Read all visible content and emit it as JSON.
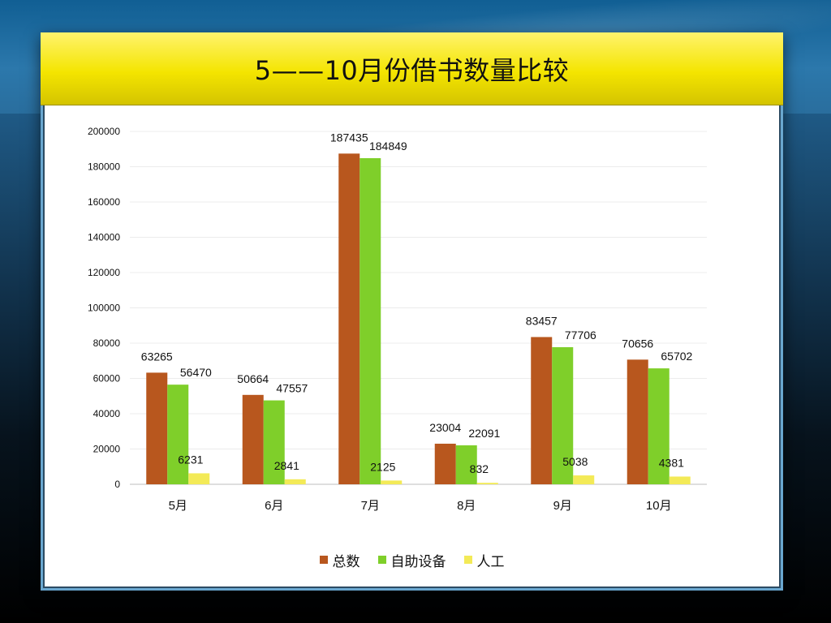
{
  "slide": {
    "title": "5——10月份借书数量比较"
  },
  "colors": {
    "total": "#b8571e",
    "self": "#7fcf2a",
    "manual": "#f3ea57"
  },
  "chart_data": {
    "type": "bar",
    "categories": [
      "5月",
      "6月",
      "7月",
      "8月",
      "9月",
      "10月"
    ],
    "ylim": [
      0,
      200000
    ],
    "yticks": [
      "0",
      "20000",
      "40000",
      "60000",
      "80000",
      "100000",
      "120000",
      "140000",
      "160000",
      "180000",
      "200000"
    ],
    "grid": true,
    "legend": "bottom",
    "series": [
      {
        "name": "总数",
        "values": [
          63265,
          50664,
          187435,
          23004,
          83457,
          70656
        ]
      },
      {
        "name": "自助设备",
        "values": [
          56470,
          47557,
          184849,
          22091,
          77706,
          65702
        ]
      },
      {
        "name": "人工",
        "values": [
          6231,
          2841,
          2125,
          832,
          5038,
          4381
        ]
      }
    ]
  }
}
